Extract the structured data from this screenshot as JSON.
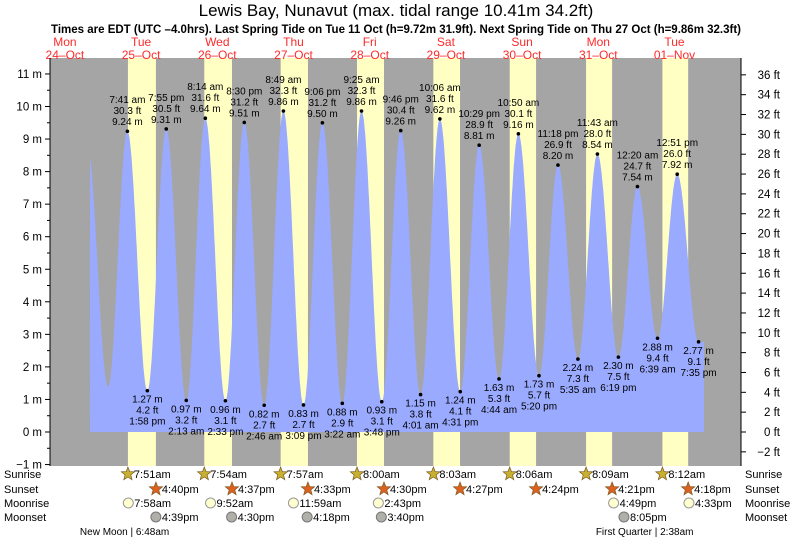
{
  "chart_data": {
    "type": "area",
    "title": "Lewis Bay, Nunavut (max. tidal range 10.41m 34.2ft)",
    "subtitle": "Times are EDT (UTC –4.0hrs). Last Spring Tide on Tue 11 Oct (h=9.72m 31.9ft). Next Spring Tide on Thu 27 Oct (h=9.86m 32.3ft)",
    "ylim_m": [
      -1,
      11
    ],
    "y_ticks_m": [
      "−1 m",
      "0 m",
      "1 m",
      "2 m",
      "3 m",
      "4 m",
      "5 m",
      "6 m",
      "7 m",
      "8 m",
      "9 m",
      "10 m",
      "11 m"
    ],
    "y_ticks_ft": [
      "−2 ft",
      "0 ft",
      "2 ft",
      "4 ft",
      "6 ft",
      "8 ft",
      "10 ft",
      "12 ft",
      "14 ft",
      "16 ft",
      "18 ft",
      "20 ft",
      "22 ft",
      "24 ft",
      "26 ft",
      "28 ft",
      "30 ft",
      "32 ft",
      "34 ft",
      "36 ft"
    ],
    "days": [
      {
        "dow": "Mon",
        "date": "24–Oct"
      },
      {
        "dow": "Tue",
        "date": "25–Oct"
      },
      {
        "dow": "Wed",
        "date": "26–Oct"
      },
      {
        "dow": "Thu",
        "date": "27–Oct"
      },
      {
        "dow": "Fri",
        "date": "28–Oct"
      },
      {
        "dow": "Sat",
        "date": "29–Oct"
      },
      {
        "dow": "Sun",
        "date": "30–Oct"
      },
      {
        "dow": "Mon",
        "date": "31–Oct"
      },
      {
        "dow": "Tue",
        "date": "01–Nov"
      }
    ],
    "tides": [
      {
        "type": "high",
        "hour": 31.68,
        "time": "7:41 am",
        "ft": "30.3 ft",
        "m": 9.24
      },
      {
        "type": "low",
        "hour": 37.97,
        "time": "1:58 pm",
        "ft": "4.2 ft",
        "m": 1.27
      },
      {
        "type": "high",
        "hour": 43.92,
        "time": "7:55 pm",
        "ft": "30.5 ft",
        "m": 9.31
      },
      {
        "type": "low",
        "hour": 50.22,
        "time": "2:13 am",
        "ft": "3.2 ft",
        "m": 0.97
      },
      {
        "type": "high",
        "hour": 56.23,
        "time": "8:14 am",
        "ft": "31.6 ft",
        "m": 9.64
      },
      {
        "type": "low",
        "hour": 62.55,
        "time": "2:33 pm",
        "ft": "3.1 ft",
        "m": 0.96
      },
      {
        "type": "high",
        "hour": 68.5,
        "time": "8:30 pm",
        "ft": "31.2 ft",
        "m": 9.51
      },
      {
        "type": "low",
        "hour": 74.77,
        "time": "2:46 am",
        "ft": "2.7 ft",
        "m": 0.82
      },
      {
        "type": "high",
        "hour": 80.82,
        "time": "8:49 am",
        "ft": "32.3 ft",
        "m": 9.86
      },
      {
        "type": "low",
        "hour": 87.15,
        "time": "3:09 pm",
        "ft": "2.7 ft",
        "m": 0.83
      },
      {
        "type": "high",
        "hour": 93.1,
        "time": "9:06 pm",
        "ft": "31.2 ft",
        "m": 9.5
      },
      {
        "type": "low",
        "hour": 99.37,
        "time": "3:22 am",
        "ft": "2.9 ft",
        "m": 0.88
      },
      {
        "type": "high",
        "hour": 105.42,
        "time": "9:25 am",
        "ft": "32.3 ft",
        "m": 9.86
      },
      {
        "type": "low",
        "hour": 111.8,
        "time": "3:48 pm",
        "ft": "3.1 ft",
        "m": 0.93
      },
      {
        "type": "high",
        "hour": 117.77,
        "time": "9:46 pm",
        "ft": "30.4 ft",
        "m": 9.26
      },
      {
        "type": "low",
        "hour": 124.02,
        "time": "4:01 am",
        "ft": "3.8 ft",
        "m": 1.15
      },
      {
        "type": "high",
        "hour": 130.1,
        "time": "10:06 am",
        "ft": "31.6 ft",
        "m": 9.62
      },
      {
        "type": "low",
        "hour": 136.52,
        "time": "4:31 pm",
        "ft": "4.1 ft",
        "m": 1.24
      },
      {
        "type": "high",
        "hour": 142.48,
        "time": "10:29 pm",
        "ft": "28.9 ft",
        "m": 8.81
      },
      {
        "type": "low",
        "hour": 148.73,
        "time": "4:44 am",
        "ft": "5.3 ft",
        "m": 1.63
      },
      {
        "type": "high",
        "hour": 154.83,
        "time": "10:50 am",
        "ft": "30.1 ft",
        "m": 9.16
      },
      {
        "type": "low",
        "hour": 161.33,
        "time": "5:20 pm",
        "ft": "5.7 ft",
        "m": 1.73
      },
      {
        "type": "high",
        "hour": 167.3,
        "time": "11:18 pm",
        "ft": "26.9 ft",
        "m": 8.2
      },
      {
        "type": "low",
        "hour": 173.58,
        "time": "5:35 am",
        "ft": "7.3 ft",
        "m": 2.24
      },
      {
        "type": "high",
        "hour": 179.72,
        "time": "11:43 am",
        "ft": "28.0 ft",
        "m": 8.54
      },
      {
        "type": "low",
        "hour": 186.32,
        "time": "6:19 pm",
        "ft": "7.5 ft",
        "m": 2.3
      },
      {
        "type": "high",
        "hour": 192.33,
        "time": "12:20 am",
        "ft": "24.7 ft",
        "m": 7.54
      },
      {
        "type": "low",
        "hour": 198.65,
        "time": "6:39 am",
        "ft": "9.4 ft",
        "m": 2.88
      },
      {
        "type": "high",
        "hour": 204.85,
        "time": "12:51 pm",
        "ft": "26.0 ft",
        "m": 7.92
      },
      {
        "type": "low",
        "hour": 211.58,
        "time": "7:35 pm",
        "ft": "9.1 ft",
        "m": 2.77
      }
    ],
    "sun": [
      {
        "rise_hour": 31.85,
        "rise": "7:51am",
        "set_hour": 40.67,
        "set": "4:40pm"
      },
      {
        "rise_hour": 55.9,
        "rise": "7:54am",
        "set_hour": 64.62,
        "set": "4:37pm"
      },
      {
        "rise_hour": 79.95,
        "rise": "7:57am",
        "set_hour": 88.55,
        "set": "4:33pm"
      },
      {
        "rise_hour": 104.0,
        "rise": "8:00am",
        "set_hour": 112.5,
        "set": "4:30pm"
      },
      {
        "rise_hour": 128.05,
        "rise": "8:03am",
        "set_hour": 136.45,
        "set": "4:27pm"
      },
      {
        "rise_hour": 152.1,
        "rise": "8:06am",
        "set_hour": 160.4,
        "set": "4:24pm"
      },
      {
        "rise_hour": 176.15,
        "rise": "8:09am",
        "set_hour": 184.35,
        "set": "4:21pm"
      },
      {
        "rise_hour": 200.2,
        "rise": "8:12am",
        "set_hour": 208.3,
        "set": "4:18pm"
      }
    ],
    "moonrise": [
      {
        "hour": 31.97,
        "time": "7:58am"
      },
      {
        "hour": 57.87,
        "time": "9:52am"
      },
      {
        "hour": 83.98,
        "time": "11:59am"
      },
      {
        "hour": 110.72,
        "time": "2:43pm"
      },
      {
        "hour": 184.82,
        "time": "4:49pm"
      },
      {
        "hour": 208.55,
        "time": "4:33pm"
      }
    ],
    "moonset": [
      {
        "hour": 40.65,
        "time": "4:39pm"
      },
      {
        "hour": 64.5,
        "time": "4:30pm"
      },
      {
        "hour": 88.3,
        "time": "4:18pm"
      },
      {
        "hour": 111.67,
        "time": "3:40pm"
      },
      {
        "hour": 188.08,
        "time": "8:05pm"
      }
    ],
    "row_labels": {
      "sunrise": "Sunrise",
      "sunset": "Sunset",
      "moonrise": "Moonrise",
      "moonset": "Moonset"
    },
    "moon_phases": [
      {
        "hour": 30.8,
        "text": "New Moon | 6:48am"
      },
      {
        "hour": 194.6,
        "text": "First Quarter | 2:38am"
      }
    ],
    "colors": {
      "background": "#a5a5a5",
      "daylight": "#ffffc4",
      "water": "#9aaaff",
      "day_label": "#ff2a2a",
      "sunrise": "#c8b030",
      "sunset": "#e06020",
      "moonrise": "#ffffd0",
      "moonset": "#b0b0a8"
    }
  }
}
